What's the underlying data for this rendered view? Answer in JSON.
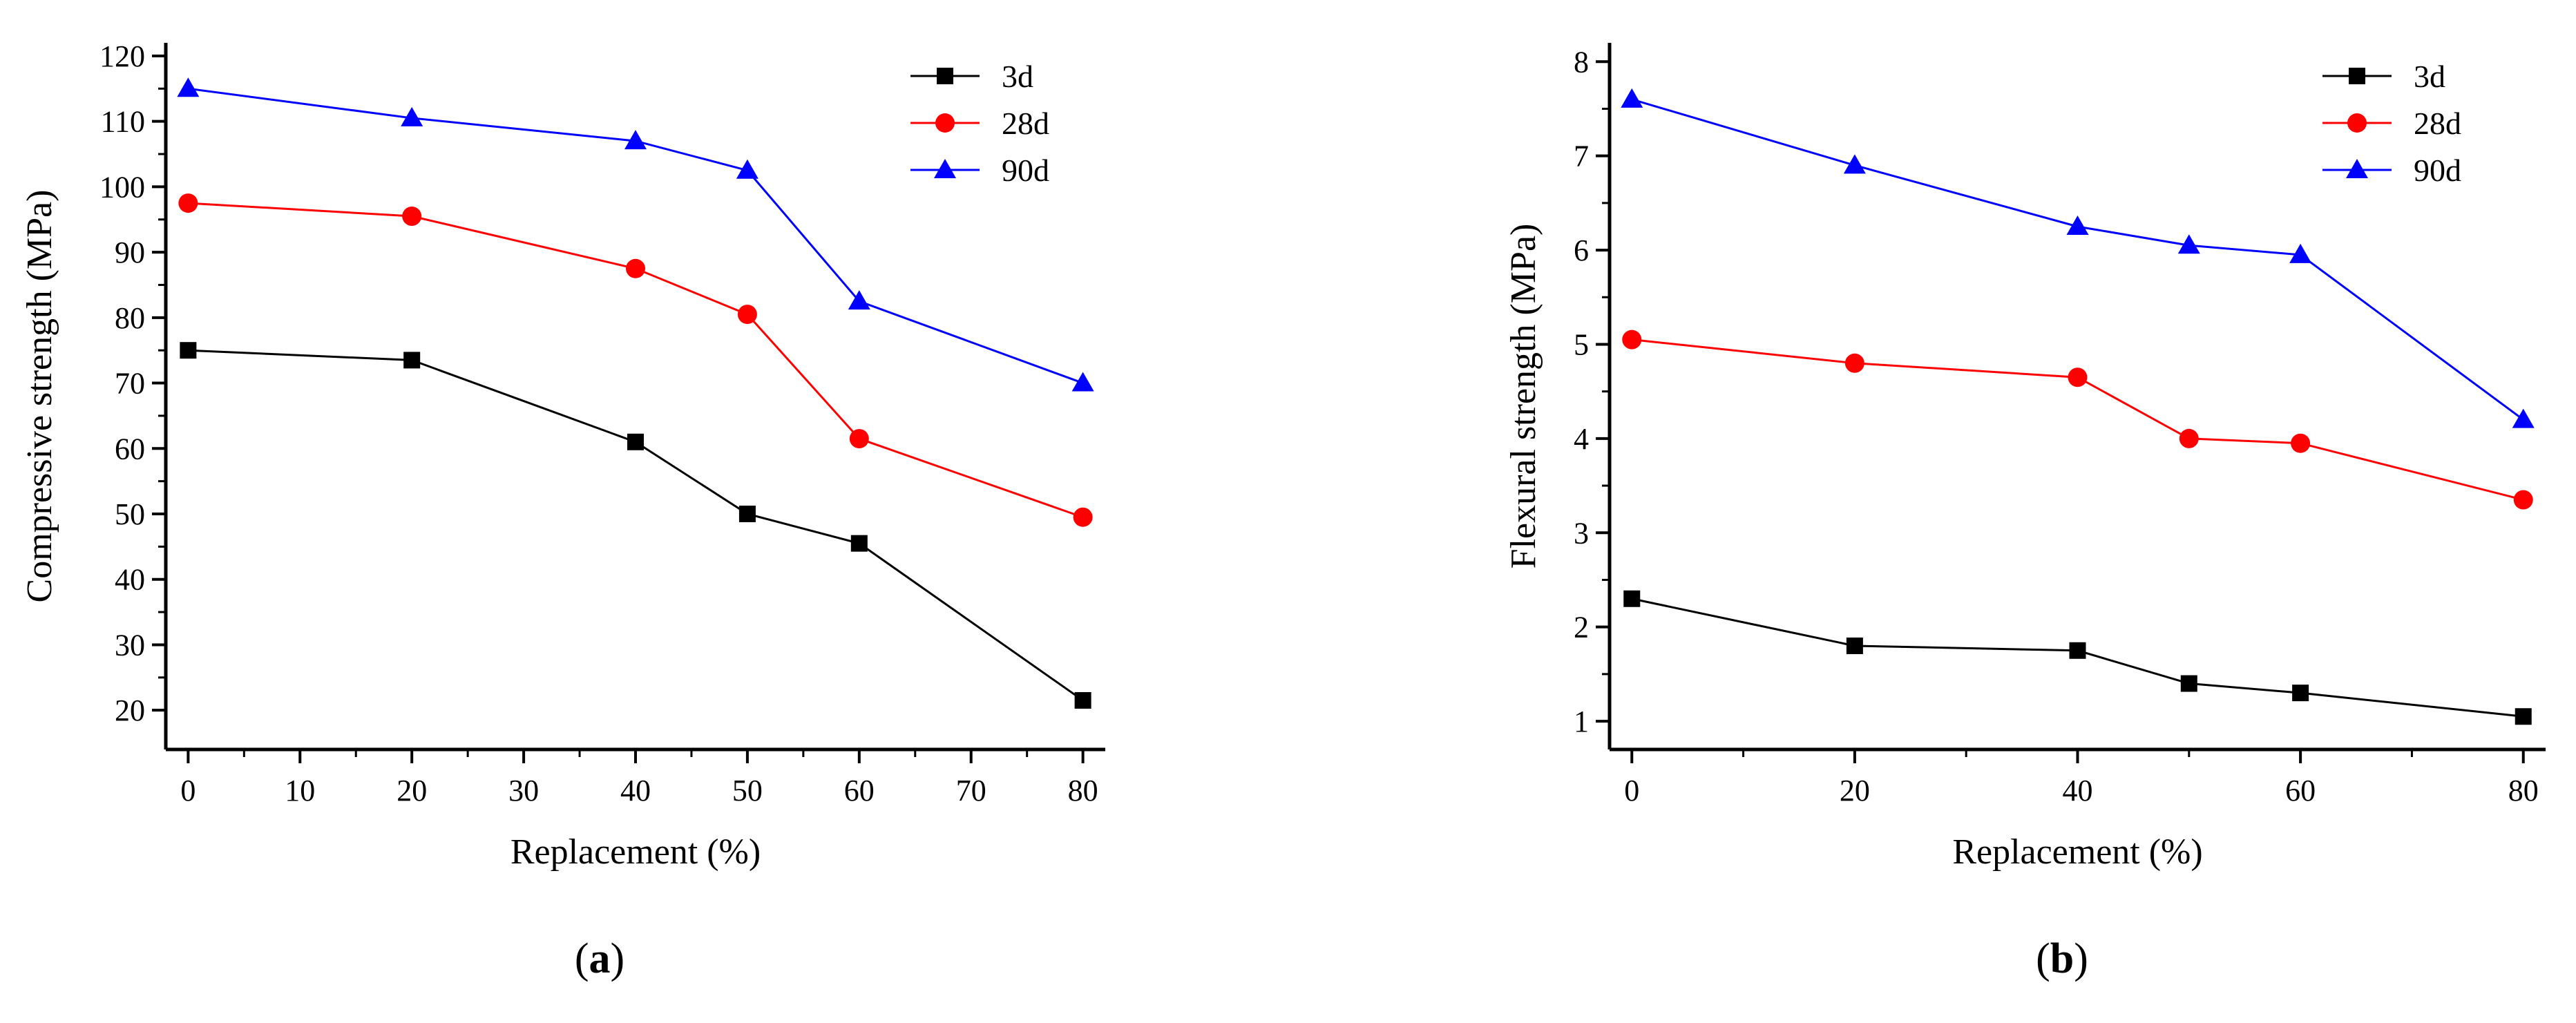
{
  "chart_data": [
    {
      "type": "line",
      "panel_label": "a",
      "title": "",
      "xlabel": "Replacement (%)",
      "ylabel": "Compressive strength (MPa)",
      "xlim": [
        -2,
        82
      ],
      "ylim": [
        14,
        122
      ],
      "xticks": [
        0,
        10,
        20,
        30,
        40,
        50,
        60,
        70,
        80
      ],
      "yticks": [
        20,
        30,
        40,
        50,
        60,
        70,
        80,
        90,
        100,
        110,
        120
      ],
      "x": [
        0,
        20,
        40,
        50,
        60,
        80
      ],
      "legend_position": "top-right",
      "series": [
        {
          "name": "3d",
          "color": "#000000",
          "marker": "square",
          "values": [
            75,
            73.5,
            61,
            50,
            45.5,
            21.5
          ]
        },
        {
          "name": "28d",
          "color": "#ff0000",
          "marker": "circle",
          "values": [
            97.5,
            95.5,
            87.5,
            80.5,
            61.5,
            49.5
          ]
        },
        {
          "name": "90d",
          "color": "#0000ff",
          "marker": "triangle",
          "values": [
            115,
            110.5,
            107,
            102.5,
            82.5,
            70
          ]
        }
      ]
    },
    {
      "type": "line",
      "panel_label": "b",
      "title": "",
      "xlabel": "Replacement (%)",
      "ylabel": "Flexural strength (MPa)",
      "xlim": [
        -2,
        82
      ],
      "ylim": [
        0.7,
        8.2
      ],
      "xticks": [
        0,
        20,
        40,
        60,
        80
      ],
      "yticks": [
        1,
        2,
        3,
        4,
        5,
        6,
        7,
        8
      ],
      "x": [
        0,
        20,
        40,
        50,
        60,
        80
      ],
      "legend_position": "top-right",
      "series": [
        {
          "name": "3d",
          "color": "#000000",
          "marker": "square",
          "values": [
            2.3,
            1.8,
            1.75,
            1.4,
            1.3,
            1.05
          ]
        },
        {
          "name": "28d",
          "color": "#ff0000",
          "marker": "circle",
          "values": [
            5.05,
            4.8,
            4.65,
            4.0,
            3.95,
            3.35
          ]
        },
        {
          "name": "90d",
          "color": "#0000ff",
          "marker": "triangle",
          "values": [
            7.6,
            6.9,
            6.25,
            6.05,
            5.95,
            4.2
          ]
        }
      ]
    }
  ]
}
